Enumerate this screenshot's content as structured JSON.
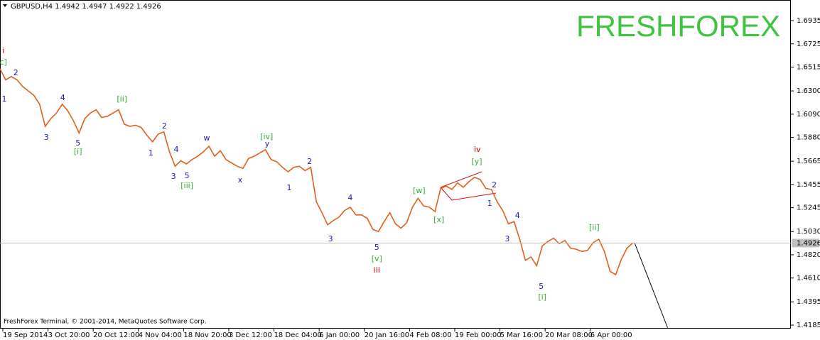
{
  "chart_data": {
    "type": "line",
    "title": "GBPUSD,H4  1.4942 1.4947 1.4922 1.4926",
    "watermark": "FRESHFOREX",
    "copyright": "FreshForex Terminal, © 2001-2014, MetaQuotes Software Corp.",
    "bid": 1.4926,
    "xlim": [
      0,
      140
    ],
    "ylim": [
      1.4153,
      1.7121
    ],
    "xticks": [
      {
        "value": 0.5,
        "label": "19 Sep 2014"
      },
      {
        "value": 8.5,
        "label": "3 Oct 20:00"
      },
      {
        "value": 16.5,
        "label": "20 Oct 12:00"
      },
      {
        "value": 24.5,
        "label": "4 Nov 04:00"
      },
      {
        "value": 32.5,
        "label": "18 Nov 20:00"
      },
      {
        "value": 40.5,
        "label": "3 Dec 12:00"
      },
      {
        "value": 48.5,
        "label": "18 Dec 04:00"
      },
      {
        "value": 56.5,
        "label": "6 Jan 00:00"
      },
      {
        "value": 64.5,
        "label": "20 Jan 16:00"
      },
      {
        "value": 72.5,
        "label": "4 Feb 08:00"
      },
      {
        "value": 80.5,
        "label": "19 Feb 00:00"
      },
      {
        "value": 88.5,
        "label": "5 Mar 16:00"
      },
      {
        "value": 96.5,
        "label": "20 Mar 08:00"
      },
      {
        "value": 104.5,
        "label": "6 Apr 00:00"
      }
    ],
    "yticks": [
      1.6935,
      1.6725,
      1.6515,
      {
        "value": 1.63,
        "label": "1.6300"
      },
      {
        "value": 1.609,
        "label": "1.6090"
      },
      {
        "value": 1.588,
        "label": "1.5880"
      },
      1.5665,
      1.5455,
      1.5245,
      {
        "value": 1.503,
        "label": "1.5030"
      },
      {
        "value": 1.482,
        "label": "1.4820"
      },
      {
        "value": 1.461,
        "label": "1.4610"
      },
      1.4395,
      1.4185
    ],
    "x": [
      0,
      1,
      2,
      3,
      4,
      5,
      6,
      7,
      8,
      9,
      10,
      11,
      12,
      13,
      14,
      15,
      16,
      17,
      18,
      19,
      20,
      21,
      22,
      23,
      24,
      25,
      26,
      27,
      28,
      29,
      30,
      31,
      32,
      33,
      34,
      35,
      36,
      37,
      38,
      39,
      40,
      41,
      42,
      43,
      44,
      45,
      46,
      47,
      48,
      49,
      50,
      51,
      52,
      53,
      54,
      55,
      56,
      57,
      58,
      59,
      60,
      61,
      62,
      63,
      64,
      65,
      66,
      67,
      68,
      69,
      70,
      71,
      72,
      73,
      74,
      75,
      76,
      77,
      78,
      79,
      80,
      81,
      82,
      83,
      84,
      85,
      86,
      87,
      88,
      89,
      90,
      91,
      92,
      93,
      94,
      95,
      96,
      97,
      98,
      99,
      100,
      101,
      102,
      103,
      104,
      105,
      106,
      107,
      108,
      109,
      110,
      111,
      112
    ],
    "series": [
      {
        "name": "GBPUSD",
        "color": "#e0601c",
        "values": [
          1.65,
          1.64,
          1.643,
          1.64,
          1.634,
          1.63,
          1.626,
          1.618,
          1.598,
          1.605,
          1.61,
          1.618,
          1.612,
          1.603,
          1.592,
          1.605,
          1.61,
          1.613,
          1.606,
          1.607,
          1.61,
          1.613,
          1.6,
          1.598,
          1.599,
          1.597,
          1.59,
          1.584,
          1.591,
          1.593,
          1.575,
          1.562,
          1.567,
          1.564,
          1.568,
          1.571,
          1.575,
          1.58,
          1.571,
          1.576,
          1.568,
          1.565,
          1.562,
          1.56,
          1.569,
          1.571,
          1.574,
          1.577,
          1.568,
          1.566,
          1.561,
          1.557,
          1.561,
          1.562,
          1.558,
          1.561,
          1.53,
          1.52,
          1.509,
          1.513,
          1.516,
          1.522,
          1.525,
          1.518,
          1.518,
          1.515,
          1.505,
          1.503,
          1.512,
          1.52,
          1.51,
          1.506,
          1.511,
          1.525,
          1.533,
          1.526,
          1.525,
          1.521,
          1.542,
          1.544,
          1.541,
          1.547,
          1.543,
          1.548,
          1.552,
          1.55,
          1.542,
          1.541,
          1.53,
          1.522,
          1.51,
          1.512,
          1.496,
          1.477,
          1.48,
          1.472,
          1.49,
          1.494,
          1.497,
          1.492,
          1.495,
          1.488,
          1.487,
          1.485,
          1.486,
          1.493,
          1.496,
          1.485,
          1.467,
          1.464,
          1.478,
          1.488,
          1.4926
        ]
      }
    ],
    "annotations": [
      {
        "text": "i",
        "x": 0.6,
        "y": 1.6659,
        "color": "#cc0000"
      },
      {
        "text": "c]",
        "x": 0.6,
        "y": 1.6557,
        "color": "#33aa33"
      },
      {
        "text": "2",
        "x": 2.8,
        "y": 1.6461,
        "color": "#1a1ab0"
      },
      {
        "text": "1",
        "x": 0.75,
        "y": 1.6224,
        "color": "#1a1ab0"
      },
      {
        "text": "4",
        "x": 11.1,
        "y": 1.6236,
        "color": "#1a1ab0"
      },
      {
        "text": "3",
        "x": 8.2,
        "y": 1.5877,
        "color": "#1a1ab0"
      },
      {
        "text": "5",
        "x": 13.8,
        "y": 1.5826,
        "color": "#1a1ab0"
      },
      {
        "text": "[i]",
        "x": 13.8,
        "y": 1.5749,
        "color": "#33aa33"
      },
      {
        "text": "[ii]",
        "x": 21.6,
        "y": 1.6224,
        "color": "#33aa33"
      },
      {
        "text": "2",
        "x": 29.1,
        "y": 1.598,
        "color": "#1a1ab0"
      },
      {
        "text": "1",
        "x": 26.7,
        "y": 1.5736,
        "color": "#1a1ab0"
      },
      {
        "text": "4",
        "x": 31.2,
        "y": 1.5768,
        "color": "#1a1ab0"
      },
      {
        "text": "3",
        "x": 30.7,
        "y": 1.5525,
        "color": "#1a1ab0"
      },
      {
        "text": "5",
        "x": 33.1,
        "y": 1.5531,
        "color": "#1a1ab0"
      },
      {
        "text": "[iii]",
        "x": 33.1,
        "y": 1.5441,
        "color": "#33aa33"
      },
      {
        "text": "w",
        "x": 36.6,
        "y": 1.5871,
        "color": "#1a1ab0"
      },
      {
        "text": "x",
        "x": 42.5,
        "y": 1.5493,
        "color": "#1a1ab0"
      },
      {
        "text": "[iv]",
        "x": 47.2,
        "y": 1.5884,
        "color": "#33aa33"
      },
      {
        "text": "y",
        "x": 47.3,
        "y": 1.582,
        "color": "#1a1ab0"
      },
      {
        "text": "2",
        "x": 54.8,
        "y": 1.5659,
        "color": "#1a1ab0"
      },
      {
        "text": "1",
        "x": 51.2,
        "y": 1.5422,
        "color": "#1a1ab0"
      },
      {
        "text": "4",
        "x": 62.0,
        "y": 1.5332,
        "color": "#1a1ab0"
      },
      {
        "text": "3",
        "x": 58.5,
        "y": 1.4961,
        "color": "#1a1ab0"
      },
      {
        "text": "5",
        "x": 66.7,
        "y": 1.4884,
        "color": "#1a1ab0"
      },
      {
        "text": "[v]",
        "x": 66.7,
        "y": 1.4781,
        "color": "#33aa33"
      },
      {
        "text": "iii",
        "x": 66.7,
        "y": 1.4679,
        "color": "#cc0000"
      },
      {
        "text": "[w]",
        "x": 74.2,
        "y": 1.5397,
        "color": "#33aa33"
      },
      {
        "text": "[x]",
        "x": 77.7,
        "y": 1.5134,
        "color": "#33aa33"
      },
      {
        "text": "iv",
        "x": 84.5,
        "y": 1.5768,
        "color": "#cc0000"
      },
      {
        "text": "[y]",
        "x": 84.4,
        "y": 1.5659,
        "color": "#33aa33"
      },
      {
        "text": "2",
        "x": 87.5,
        "y": 1.5448,
        "color": "#1a1ab0"
      },
      {
        "text": "1",
        "x": 86.7,
        "y": 1.5281,
        "color": "#1a1ab0"
      },
      {
        "text": "4",
        "x": 91.6,
        "y": 1.5172,
        "color": "#1a1ab0"
      },
      {
        "text": "3",
        "x": 89.8,
        "y": 1.4961,
        "color": "#1a1ab0"
      },
      {
        "text": "5",
        "x": 95.8,
        "y": 1.4531,
        "color": "#1a1ab0"
      },
      {
        "text": "[i]",
        "x": 96.0,
        "y": 1.4435,
        "color": "#33aa33"
      },
      {
        "text": "[ii]",
        "x": 105.2,
        "y": 1.5063,
        "color": "#33aa33"
      }
    ]
  }
}
